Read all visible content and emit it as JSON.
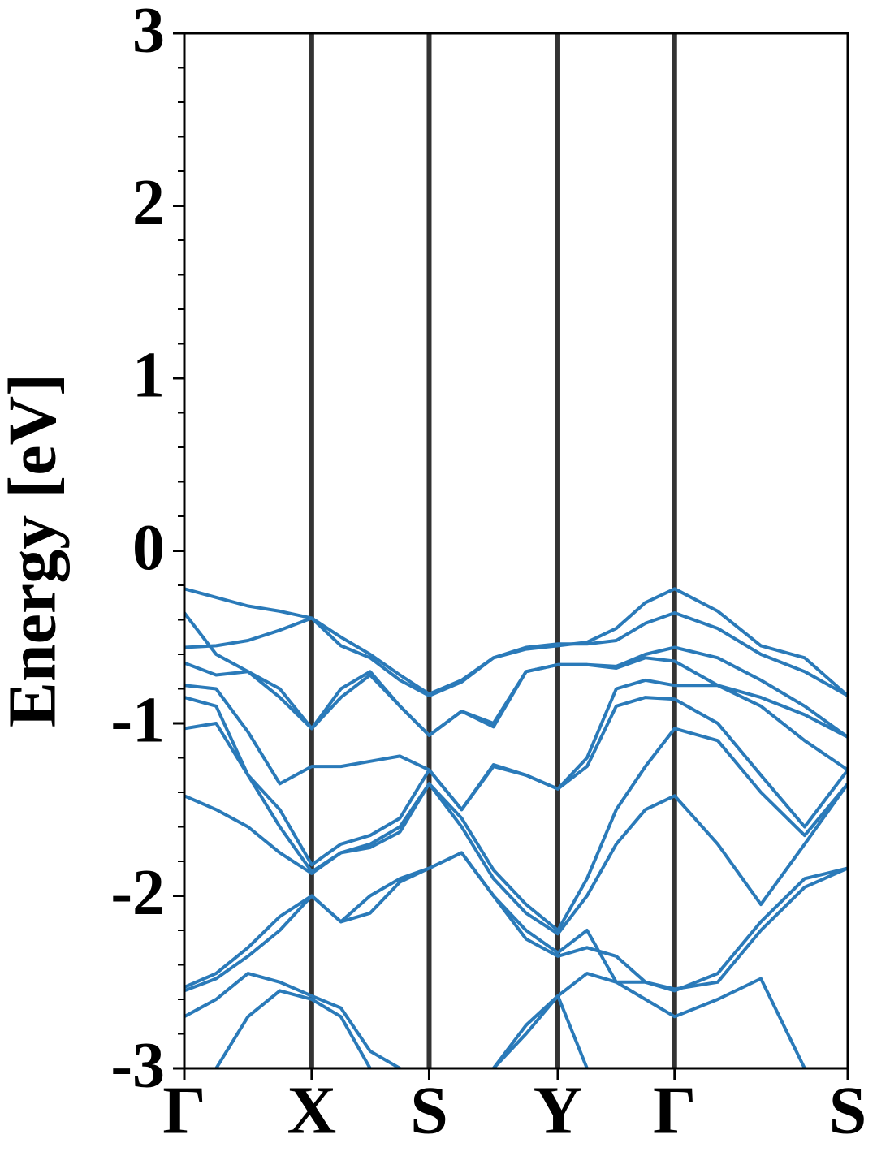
{
  "chart_data": {
    "type": "line",
    "ylabel": "Energy [eV]",
    "ylim": [
      -3,
      3
    ],
    "yticks": [
      -3,
      -2,
      -1,
      0,
      1,
      2,
      3
    ],
    "yminorticks": [
      -2.8,
      -2.6,
      -2.4,
      -2.2,
      -1.8,
      -1.6,
      -1.4,
      -1.2,
      -0.8,
      -0.6,
      -0.4,
      -0.2,
      0.2,
      0.4,
      0.6,
      0.8,
      1.2,
      1.4,
      1.6,
      1.8,
      2.2,
      2.4,
      2.6,
      2.8
    ],
    "xlim": [
      0,
      1
    ],
    "xticks": [
      {
        "value": 0,
        "label": "Γ"
      },
      {
        "value": 0.192,
        "label": "X"
      },
      {
        "value": 0.369,
        "label": "S"
      },
      {
        "value": 0.563,
        "label": "Y"
      },
      {
        "value": 0.739,
        "label": "Γ"
      },
      {
        "value": 1,
        "label": "S"
      }
    ],
    "vlines": true,
    "vline_color": "#333333",
    "color": "#2a7ab9",
    "x": [
      0,
      0.048,
      0.096,
      0.144,
      0.192,
      0.236,
      0.28,
      0.325,
      0.369,
      0.418,
      0.466,
      0.515,
      0.563,
      0.607,
      0.651,
      0.695,
      0.739,
      0.804,
      0.869,
      0.935,
      1
    ],
    "series": [
      {
        "values": [
          -0.22,
          -0.27,
          -0.32,
          -0.35,
          -0.39,
          -0.5,
          -0.6,
          -0.72,
          -0.83,
          -0.75,
          -0.62,
          -0.57,
          -0.55,
          -0.53,
          -0.45,
          -0.3,
          -0.22,
          -0.35,
          -0.55,
          -0.62,
          -0.84
        ]
      },
      {
        "values": [
          -0.56,
          -0.55,
          -0.52,
          -0.46,
          -0.39,
          -0.55,
          -0.62,
          -0.75,
          -0.84,
          -0.76,
          -0.62,
          -0.56,
          -0.54,
          -0.54,
          -0.52,
          -0.42,
          -0.36,
          -0.45,
          -0.6,
          -0.7,
          -0.84
        ]
      },
      {
        "values": [
          -0.36,
          -0.6,
          -0.7,
          -0.85,
          -1.03,
          -0.8,
          -0.7,
          -0.9,
          -1.07,
          -0.93,
          -1.0,
          -0.7,
          -0.66,
          -0.66,
          -0.67,
          -0.6,
          -0.56,
          -0.62,
          -0.75,
          -0.9,
          -1.08
        ]
      },
      {
        "values": [
          -0.65,
          -0.72,
          -0.7,
          -0.8,
          -1.03,
          -0.85,
          -0.72,
          -0.9,
          -1.07,
          -0.93,
          -1.02,
          -0.7,
          -0.66,
          -0.66,
          -0.68,
          -0.62,
          -0.64,
          -0.78,
          -0.85,
          -0.95,
          -1.08
        ]
      },
      {
        "values": [
          -0.78,
          -0.8,
          -1.05,
          -1.35,
          -1.25,
          -1.25,
          -1.22,
          -1.19,
          -1.27,
          -1.5,
          -1.25,
          -1.3,
          -1.38,
          -1.2,
          -0.8,
          -0.75,
          -0.78,
          -0.78,
          -0.9,
          -1.1,
          -1.27
        ]
      },
      {
        "values": [
          -0.85,
          -0.9,
          -1.3,
          -1.5,
          -1.82,
          -1.7,
          -1.65,
          -1.55,
          -1.27,
          -1.5,
          -1.24,
          -1.3,
          -1.38,
          -1.25,
          -0.9,
          -0.85,
          -0.86,
          -1.0,
          -1.3,
          -1.6,
          -1.27
        ]
      },
      {
        "values": [
          -1.03,
          -1.0,
          -1.3,
          -1.6,
          -1.86,
          -1.75,
          -1.7,
          -1.6,
          -1.35,
          -1.55,
          -1.85,
          -2.05,
          -2.2,
          -1.9,
          -1.5,
          -1.25,
          -1.03,
          -1.1,
          -1.4,
          -1.65,
          -1.35
        ]
      },
      {
        "values": [
          -1.42,
          -1.5,
          -1.6,
          -1.75,
          -1.87,
          -1.75,
          -1.72,
          -1.63,
          -1.35,
          -1.6,
          -1.9,
          -2.1,
          -2.22,
          -2.0,
          -1.7,
          -1.5,
          -1.42,
          -1.7,
          -2.05,
          -1.7,
          -1.35
        ]
      },
      {
        "values": [
          -2.53,
          -2.45,
          -2.3,
          -2.12,
          -2.0,
          -2.15,
          -2.1,
          -1.92,
          -1.84,
          -1.75,
          -2.0,
          -2.2,
          -2.33,
          -2.2,
          -2.5,
          -2.5,
          -2.54,
          -2.5,
          -2.2,
          -1.95,
          -1.84
        ]
      },
      {
        "values": [
          -2.55,
          -2.48,
          -2.35,
          -2.2,
          -2.0,
          -2.15,
          -2.0,
          -1.9,
          -1.84,
          -1.75,
          -2.0,
          -2.25,
          -2.35,
          -2.3,
          -2.35,
          -2.5,
          -2.55,
          -2.45,
          -2.15,
          -1.9,
          -1.84
        ]
      },
      {
        "values": [
          -2.7,
          -2.6,
          -2.45,
          -2.5,
          -2.58,
          -2.65,
          -2.9,
          -3.0,
          null,
          null,
          -3.0,
          -2.75,
          -2.58,
          -2.45,
          -2.5,
          -2.6,
          -2.7,
          -2.6,
          -2.48,
          -3.0,
          null
        ]
      },
      {
        "values": [
          null,
          -3.0,
          -2.7,
          -2.55,
          -2.6,
          -2.7,
          -3.0,
          null,
          null,
          null,
          -3.0,
          -2.8,
          -2.58,
          -3.0,
          null,
          null,
          null,
          null,
          null,
          null,
          null
        ]
      }
    ]
  }
}
